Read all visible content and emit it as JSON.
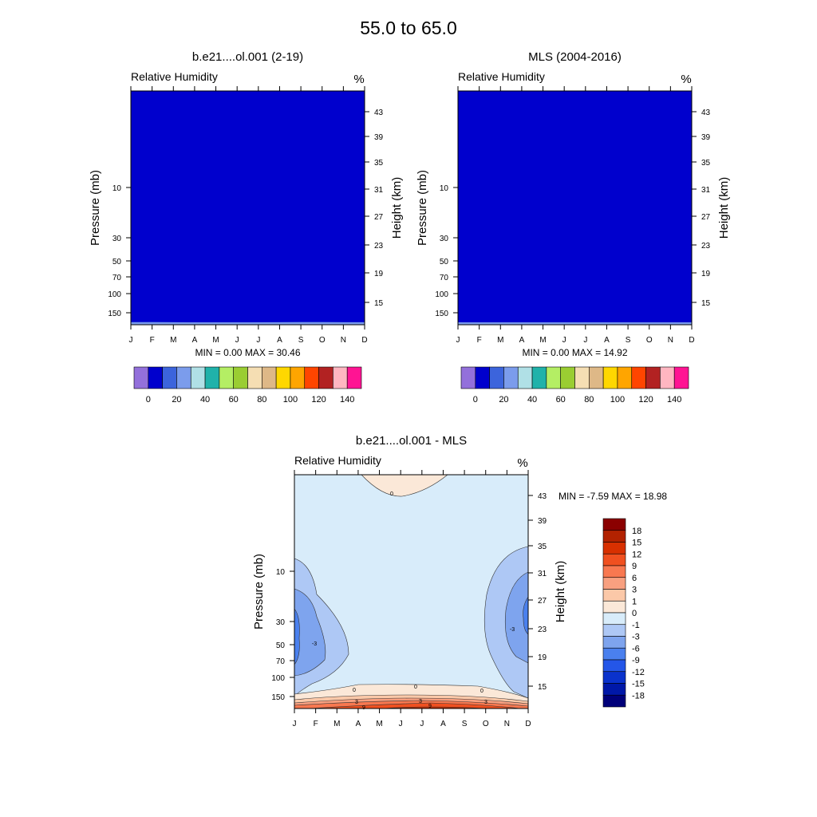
{
  "title": "55.0 to  65.0",
  "months": [
    "J",
    "F",
    "M",
    "A",
    "M",
    "J",
    "J",
    "A",
    "S",
    "O",
    "N",
    "D"
  ],
  "charts": [
    {
      "type": "heatmap",
      "title": "b.e21....ol.001 (2-19)",
      "left_label": "Relative Humidity",
      "right_label": "%",
      "ylabel": "Pressure (mb)",
      "ylabel_right": "Height (km)",
      "pressure_ticks": [
        "10",
        "30",
        "50",
        "70",
        "100",
        "150"
      ],
      "height_ticks": [
        "43",
        "39",
        "35",
        "31",
        "27",
        "23",
        "19",
        "15"
      ],
      "min_max_text": "MIN =   0.00  MAX =  30.46",
      "bottom_band_monthly": [
        0.072,
        0.074,
        0.07,
        0.062,
        0.06,
        0.062,
        0.066,
        0.07,
        0.074,
        0.074,
        0.07,
        0.07
      ],
      "colorbar_labels": [
        "0",
        "20",
        "40",
        "60",
        "80",
        "100",
        "120",
        "140"
      ],
      "colorbar_colors": [
        "#9370db",
        "#0000cd",
        "#3c64dc",
        "#7b9cec",
        "#b0e0e6",
        "#20b2aa",
        "#b4ee64",
        "#9acd32",
        "#f5deb3",
        "#deb887",
        "#ffd700",
        "#ffa500",
        "#ff4500",
        "#b22222",
        "#ffb6c1",
        "#ff1493"
      ]
    },
    {
      "type": "heatmap",
      "title": "MLS (2004-2016)",
      "left_label": "Relative Humidity",
      "right_label": "%",
      "ylabel": "Pressure (mb)",
      "ylabel_right": "Height (km)",
      "pressure_ticks": [
        "10",
        "30",
        "50",
        "70",
        "100",
        "150"
      ],
      "height_ticks": [
        "43",
        "39",
        "35",
        "31",
        "27",
        "23",
        "19",
        "15"
      ],
      "min_max_text": "MIN =   0.00  MAX =  14.92",
      "bottom_band_monthly": [
        0.07,
        0.045,
        0.025,
        0.018,
        0.016,
        0.016,
        0.018,
        0.02,
        0.024,
        0.028,
        0.035,
        0.06
      ],
      "colorbar_labels": [
        "0",
        "20",
        "40",
        "60",
        "80",
        "100",
        "120",
        "140"
      ],
      "colorbar_colors": [
        "#9370db",
        "#0000cd",
        "#3c64dc",
        "#7b9cec",
        "#b0e0e6",
        "#20b2aa",
        "#b4ee64",
        "#9acd32",
        "#f5deb3",
        "#deb887",
        "#ffd700",
        "#ffa500",
        "#ff4500",
        "#b22222",
        "#ffb6c1",
        "#ff1493"
      ]
    },
    {
      "type": "heatmap",
      "title": "b.e21....ol.001 - MLS",
      "left_label": "Relative Humidity",
      "right_label": "%",
      "ylabel": "Pressure (mb)",
      "ylabel_right": "Height (km)",
      "pressure_ticks": [
        "10",
        "30",
        "50",
        "70",
        "100",
        "150"
      ],
      "height_ticks": [
        "43",
        "39",
        "35",
        "31",
        "27",
        "23",
        "19",
        "15"
      ],
      "min_max_text": "MIN =  -7.59  MAX =  18.98",
      "contour_labels": [
        "0",
        "-3",
        "-3",
        "0",
        "0",
        "0",
        "3",
        "3",
        "3",
        "9",
        "9"
      ],
      "colorbar_labels": [
        "18",
        "15",
        "12",
        "9",
        "6",
        "3",
        "1",
        "0",
        "-1",
        "-3",
        "-6",
        "-9",
        "-12",
        "-15",
        "-18"
      ],
      "colorbar_colors": [
        "#8b0000",
        "#b22200",
        "#d83000",
        "#f05020",
        "#f87850",
        "#f8a080",
        "#fbc8a8",
        "#fbe8d8",
        "#d8ecfa",
        "#aec8f5",
        "#7ea4ee",
        "#4a80ee",
        "#2456e8",
        "#0a32cc",
        "#0018a8",
        "#00007a"
      ]
    }
  ]
}
